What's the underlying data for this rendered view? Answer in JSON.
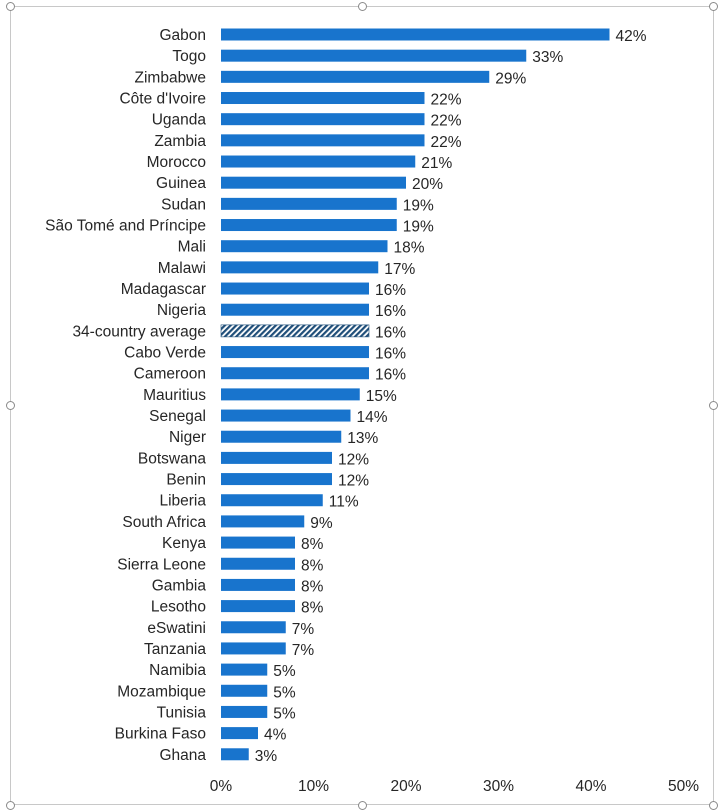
{
  "chart_data": {
    "type": "bar",
    "orientation": "horizontal",
    "title": "",
    "xlabel": "",
    "ylabel": "",
    "xlim": [
      0,
      50
    ],
    "x_ticks": [
      "0%",
      "10%",
      "20%",
      "30%",
      "40%",
      "50%"
    ],
    "grid": false,
    "legend": "none",
    "value_suffix": "%",
    "colors": {
      "bar": "#1874CD",
      "average_bar_pattern": "#1F4E79",
      "text": "#262626"
    },
    "categories": [
      "Gabon",
      "Togo",
      "Zimbabwe",
      "Côte d'Ivoire",
      "Uganda",
      "Zambia",
      "Morocco",
      "Guinea",
      "Sudan",
      "São Tomé and Príncipe",
      "Mali",
      "Malawi",
      "Madagascar",
      "Nigeria",
      "34-country average",
      "Cabo Verde",
      "Cameroon",
      "Mauritius",
      "Senegal",
      "Niger",
      "Botswana",
      "Benin",
      "Liberia",
      "South Africa",
      "Kenya",
      "Sierra Leone",
      "Gambia",
      "Lesotho",
      "eSwatini",
      "Tanzania",
      "Namibia",
      "Mozambique",
      "Tunisia",
      "Burkina Faso",
      "Ghana"
    ],
    "values": [
      42,
      33,
      29,
      22,
      22,
      22,
      21,
      20,
      19,
      19,
      18,
      17,
      16,
      16,
      16,
      16,
      16,
      15,
      14,
      13,
      12,
      12,
      11,
      9,
      8,
      8,
      8,
      8,
      7,
      7,
      5,
      5,
      5,
      4,
      3
    ],
    "data_labels": [
      "42%",
      "33%",
      "29%",
      "22%",
      "22%",
      "22%",
      "21%",
      "20%",
      "19%",
      "19%",
      "18%",
      "17%",
      "16%",
      "16%",
      "16%",
      "16%",
      "16%",
      "15%",
      "14%",
      "13%",
      "12%",
      "12%",
      "11%",
      "9%",
      "8%",
      "8%",
      "8%",
      "8%",
      "7%",
      "7%",
      "5%",
      "5%",
      "5%",
      "4%",
      "3%"
    ],
    "highlighted_category": "34-country average"
  }
}
